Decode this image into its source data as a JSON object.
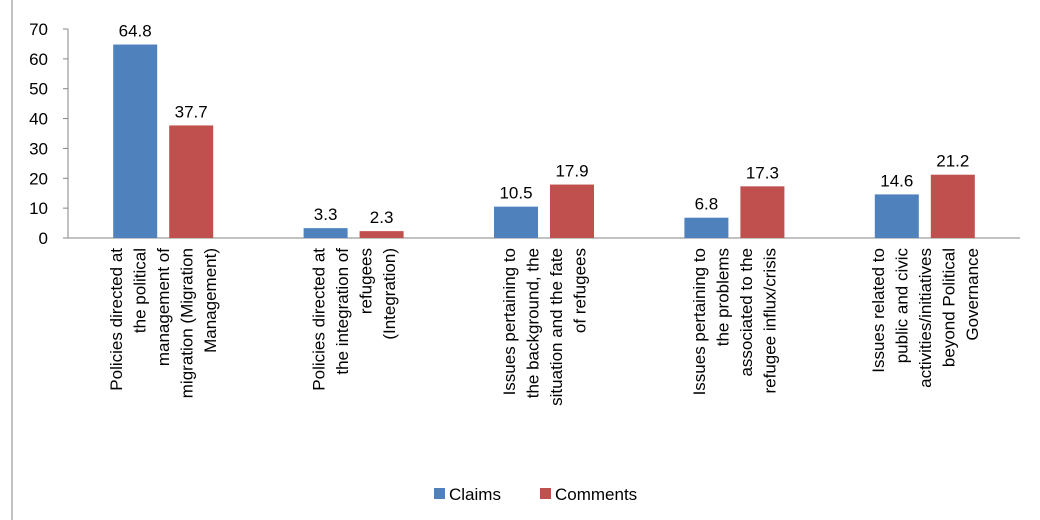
{
  "chart_data": {
    "type": "bar",
    "categories": [
      [
        "Policies directed at",
        "the political",
        "management of",
        "migration (Migration",
        "Management)"
      ],
      [
        "Policies directed at",
        "the integration of",
        "refugees",
        "(Integration)"
      ],
      [
        "Issues pertaining to",
        "the background, the",
        "situation and the fate",
        "of refugees"
      ],
      [
        "Issues pertaining to",
        "the problems",
        "associated to the",
        "refugee influx/crisis"
      ],
      [
        "Issues related to",
        "public and civic",
        "activities/initiatives",
        "beyond Political",
        "Governance"
      ]
    ],
    "series": [
      {
        "name": "Claims",
        "color": "#4f81bd",
        "values": [
          64.8,
          3.3,
          10.5,
          6.8,
          14.6
        ]
      },
      {
        "name": "Comments",
        "color": "#c0504d",
        "values": [
          37.7,
          2.3,
          17.9,
          17.3,
          21.2
        ]
      }
    ],
    "ylim": [
      0,
      70
    ],
    "yticks": [
      0,
      10,
      20,
      30,
      40,
      50,
      60,
      70
    ],
    "legend": "bottom"
  }
}
